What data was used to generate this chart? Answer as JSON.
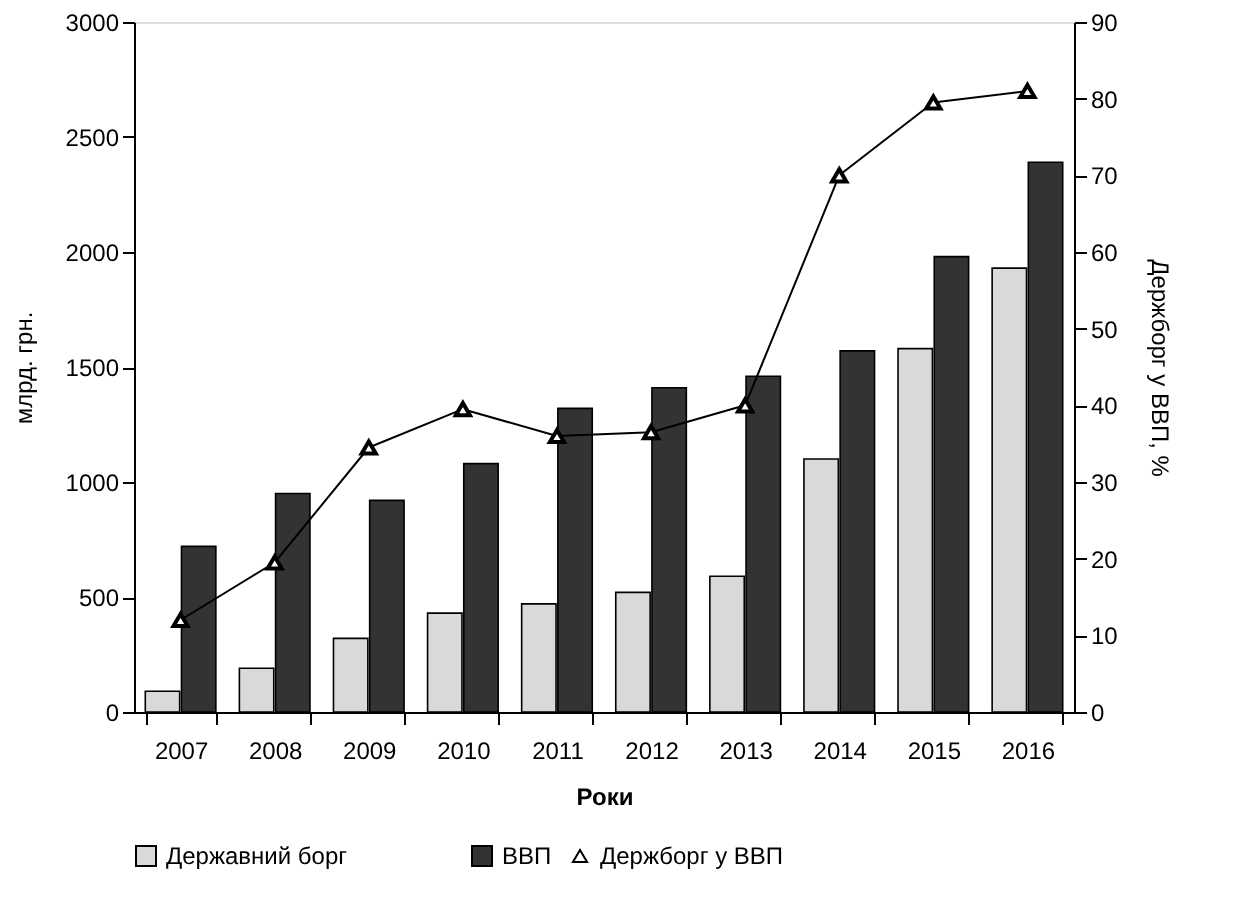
{
  "chart_data": {
    "type": "bar",
    "xlabel": "Роки",
    "ylabel": "млрд. грн.",
    "y2label": "Держборг у ВВП, %",
    "categories": [
      "2007",
      "2008",
      "2009",
      "2010",
      "2011",
      "2012",
      "2013",
      "2014",
      "2015",
      "2016"
    ],
    "series": [
      {
        "name": "Державний борг",
        "color": "#d9d9d9",
        "values": [
          90,
          190,
          320,
          430,
          470,
          520,
          590,
          1100,
          1580,
          1930
        ]
      },
      {
        "name": "ВВП",
        "color": "#333333",
        "values": [
          720,
          950,
          920,
          1080,
          1320,
          1410,
          1460,
          1570,
          1980,
          2390
        ]
      },
      {
        "name": "Держборг у ВВП",
        "color": "#000000",
        "type": "line",
        "axis": "y2",
        "marker": "triangle",
        "values": [
          12,
          19.5,
          34.5,
          39.5,
          36,
          36.5,
          40,
          70,
          79.5,
          81
        ]
      }
    ],
    "ylim": [
      0,
      3000
    ],
    "yticks": [
      0,
      500,
      1000,
      1500,
      2000,
      2500,
      3000
    ],
    "y2lim": [
      0,
      90
    ],
    "y2ticks": [
      0,
      10,
      20,
      30,
      40,
      50,
      60,
      70,
      80,
      90
    ],
    "grid": false,
    "legend": "bottom"
  }
}
